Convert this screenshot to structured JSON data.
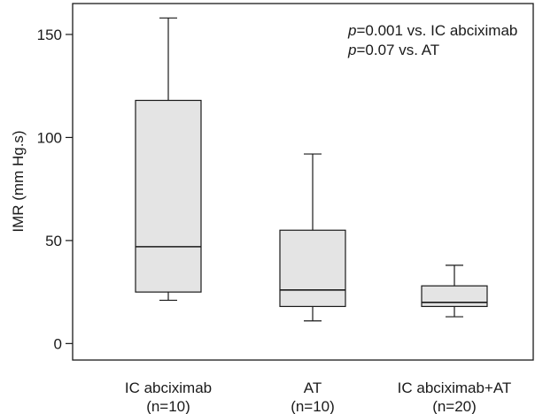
{
  "chart_data": {
    "type": "box",
    "ylabel": "IMR (mm Hg.s)",
    "ylim": [
      -8,
      165
    ],
    "y_ticks": [
      0,
      50,
      100,
      150
    ],
    "y_tick_labels": [
      "0",
      "50",
      "100",
      "150"
    ],
    "categories": [
      {
        "label": "IC abciximab",
        "sublabel": "(n=10)"
      },
      {
        "label": "AT",
        "sublabel": "(n=10)"
      },
      {
        "label": "IC abciximab+AT",
        "sublabel": "(n=20)"
      }
    ],
    "boxes": [
      {
        "min": 21,
        "q1": 25,
        "median": 47,
        "q3": 118,
        "max": 158
      },
      {
        "min": 11,
        "q1": 18,
        "median": 26,
        "q3": 55,
        "max": 92
      },
      {
        "min": 13,
        "q1": 18,
        "median": 20,
        "q3": 28,
        "max": 38
      }
    ],
    "annotations": [
      {
        "italic": "p",
        "text": "=0.001 vs. IC abciximab"
      },
      {
        "italic": "p",
        "text": "=0.07 vs. AT"
      }
    ],
    "box_fill": "#e4e4e4",
    "line_color": "#1a1a1a"
  }
}
